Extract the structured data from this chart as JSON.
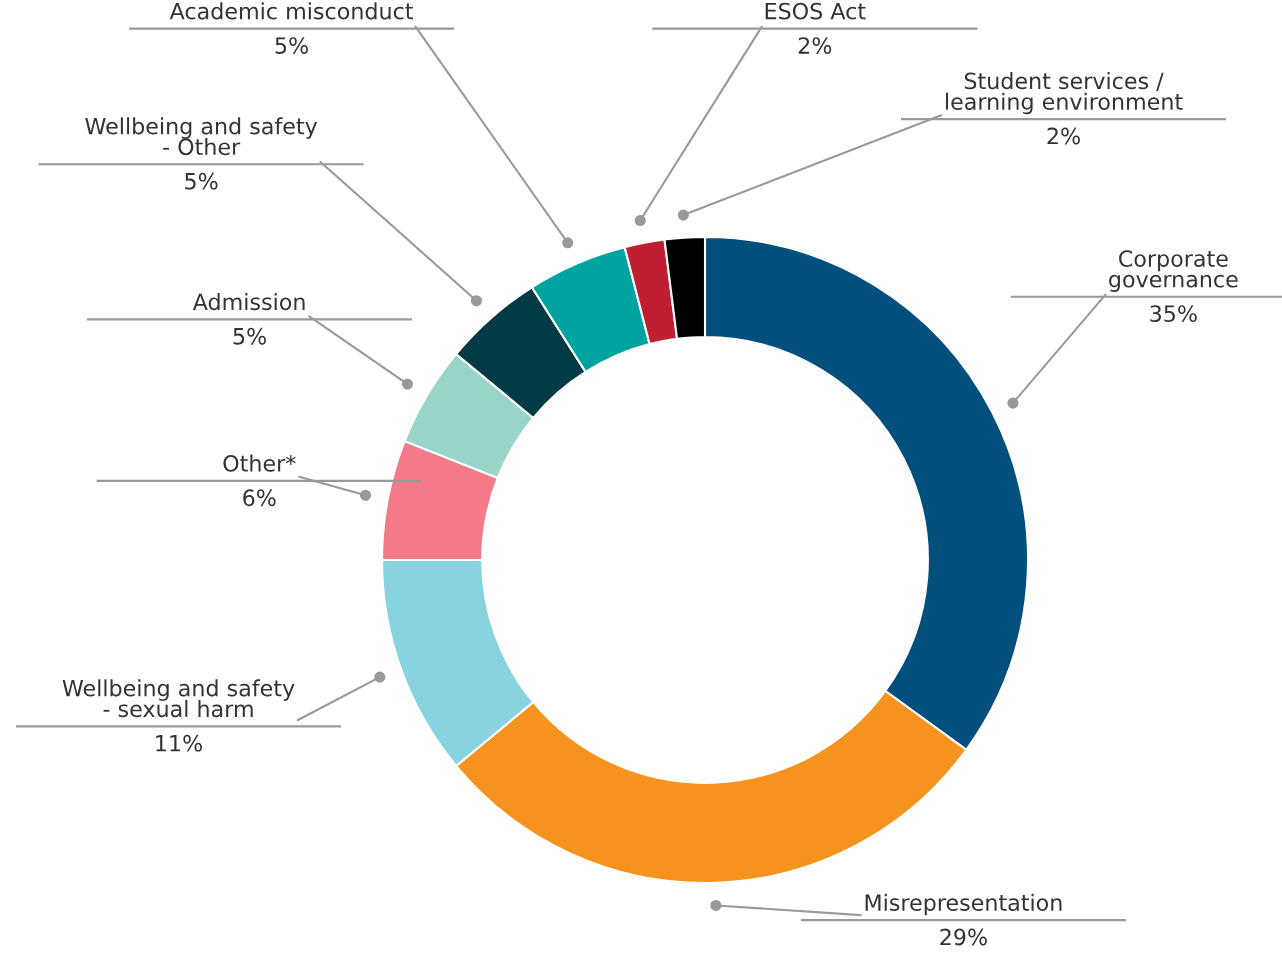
{
  "chart_data": {
    "type": "donut",
    "categories": [
      "Corporate\ngovernance",
      "Misrepresentation",
      "Wellbeing and safety\n- sexual harm",
      "Other*",
      "Admission",
      "Wellbeing and safety\n- Other",
      "Academic misconduct",
      "ESOS Act",
      "Student services /\nlearning environment"
    ],
    "values": [
      35,
      29,
      11,
      6,
      5,
      5,
      5,
      2,
      2
    ],
    "value_labels": [
      "35%",
      "29%",
      "11%",
      "6%",
      "5%",
      "5%",
      "5%",
      "2%",
      "2%"
    ],
    "colors": [
      "#004f7c",
      "#f5931e",
      "#87d3e0",
      "#f47a8a",
      "#98d4c8",
      "#003a45",
      "#00a3a0",
      "#c01f32",
      "#000000"
    ]
  }
}
